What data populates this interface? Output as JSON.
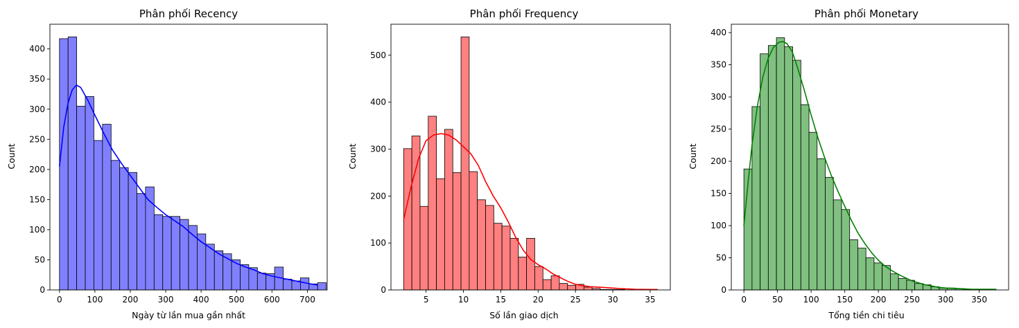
{
  "chart_data": [
    {
      "type": "bar",
      "subtype": "histogram-with-kde",
      "title": "Phân phối Recency",
      "xlabel": "Ngày từ lần mua gần nhất",
      "ylabel": "Count",
      "color": "#0000ff",
      "fill": "#8080ff",
      "xlim": [
        -27,
        756
      ],
      "ylim": [
        0,
        441
      ],
      "xticks": [
        0,
        100,
        200,
        300,
        400,
        500,
        600,
        700
      ],
      "yticks": [
        0,
        50,
        100,
        150,
        200,
        250,
        300,
        350,
        400
      ],
      "bin_start": 0,
      "bin_width": 24.3,
      "values": [
        417,
        420,
        305,
        321,
        248,
        275,
        215,
        203,
        195,
        160,
        171,
        125,
        122,
        122,
        117,
        107,
        93,
        76,
        65,
        60,
        50,
        42,
        37,
        28,
        27,
        38,
        18,
        15,
        20,
        10,
        12
      ],
      "kde": [
        [
          0,
          205
        ],
        [
          12,
          270
        ],
        [
          24,
          310
        ],
        [
          36,
          332
        ],
        [
          48,
          340
        ],
        [
          60,
          336
        ],
        [
          80,
          315
        ],
        [
          100,
          290
        ],
        [
          125,
          260
        ],
        [
          150,
          232
        ],
        [
          175,
          210
        ],
        [
          200,
          190
        ],
        [
          225,
          170
        ],
        [
          250,
          150
        ],
        [
          275,
          137
        ],
        [
          300,
          125
        ],
        [
          325,
          115
        ],
        [
          350,
          105
        ],
        [
          375,
          92
        ],
        [
          400,
          80
        ],
        [
          425,
          70
        ],
        [
          450,
          60
        ],
        [
          475,
          52
        ],
        [
          500,
          44
        ],
        [
          525,
          38
        ],
        [
          550,
          33
        ],
        [
          575,
          27
        ],
        [
          600,
          23
        ],
        [
          625,
          20
        ],
        [
          650,
          17
        ],
        [
          675,
          14
        ],
        [
          700,
          11
        ],
        [
          729,
          8
        ]
      ]
    },
    {
      "type": "bar",
      "subtype": "histogram-with-kde",
      "title": "Phân phối Frequency",
      "xlabel": "Số lần giao dịch",
      "ylabel": "Count",
      "color": "#ff0000",
      "fill": "#ff8080",
      "xlim": [
        0.3,
        37.7
      ],
      "ylim": [
        0,
        566
      ],
      "xticks": [
        5,
        10,
        15,
        20,
        25,
        30,
        35
      ],
      "yticks": [
        0,
        100,
        200,
        300,
        400,
        500
      ],
      "bin_start": 2,
      "bin_width": 1.097,
      "values": [
        301,
        328,
        178,
        370,
        237,
        342,
        250,
        539,
        252,
        192,
        180,
        142,
        136,
        110,
        70,
        110,
        50,
        22,
        30,
        14,
        10,
        12,
        6,
        3,
        1,
        1,
        1,
        0,
        0,
        0,
        0
      ],
      "kde": [
        [
          2,
          150
        ],
        [
          3,
          220
        ],
        [
          4,
          280
        ],
        [
          5,
          318
        ],
        [
          6,
          330
        ],
        [
          7,
          333
        ],
        [
          8,
          330
        ],
        [
          9,
          320
        ],
        [
          10,
          305
        ],
        [
          11,
          290
        ],
        [
          12,
          265
        ],
        [
          13,
          230
        ],
        [
          14,
          200
        ],
        [
          15,
          175
        ],
        [
          16,
          145
        ],
        [
          17,
          112
        ],
        [
          18,
          85
        ],
        [
          19,
          65
        ],
        [
          20,
          54
        ],
        [
          21,
          45
        ],
        [
          22,
          34
        ],
        [
          23,
          26
        ],
        [
          24,
          18
        ],
        [
          25,
          12
        ],
        [
          26,
          9
        ],
        [
          27,
          7
        ],
        [
          28,
          6
        ],
        [
          29,
          5
        ],
        [
          30,
          4
        ],
        [
          31,
          3
        ],
        [
          32,
          2
        ],
        [
          33,
          1.5
        ],
        [
          35,
          1
        ],
        [
          36,
          1
        ]
      ]
    },
    {
      "type": "bar",
      "subtype": "histogram-with-kde",
      "title": "Phân phối Monetary",
      "xlabel": "Tổng tiền chi tiêu",
      "ylabel": "Count",
      "color": "#008000",
      "fill": "#80c080",
      "xlim": [
        -18.7,
        393.7
      ],
      "ylim": [
        0,
        413
      ],
      "xticks": [
        0,
        50,
        100,
        150,
        200,
        250,
        300,
        350
      ],
      "yticks": [
        0,
        50,
        100,
        150,
        200,
        250,
        300,
        350,
        400
      ],
      "bin_start": 0,
      "bin_width": 12.1,
      "values": [
        188,
        285,
        367,
        380,
        392,
        378,
        357,
        288,
        245,
        204,
        175,
        140,
        125,
        78,
        65,
        50,
        42,
        38,
        25,
        18,
        15,
        10,
        8,
        5,
        3,
        3,
        2,
        1,
        1,
        1,
        1
      ],
      "kde": [
        [
          0,
          100
        ],
        [
          6,
          165
        ],
        [
          12,
          225
        ],
        [
          20,
          285
        ],
        [
          28,
          330
        ],
        [
          36,
          360
        ],
        [
          44,
          377
        ],
        [
          52,
          385
        ],
        [
          58,
          386
        ],
        [
          64,
          383
        ],
        [
          72,
          370
        ],
        [
          80,
          345
        ],
        [
          90,
          310
        ],
        [
          100,
          272
        ],
        [
          110,
          237
        ],
        [
          120,
          206
        ],
        [
          130,
          178
        ],
        [
          140,
          153
        ],
        [
          150,
          130
        ],
        [
          160,
          108
        ],
        [
          170,
          88
        ],
        [
          180,
          72
        ],
        [
          190,
          58
        ],
        [
          200,
          46
        ],
        [
          210,
          37
        ],
        [
          220,
          30
        ],
        [
          230,
          24
        ],
        [
          240,
          19
        ],
        [
          250,
          14
        ],
        [
          260,
          11
        ],
        [
          270,
          8
        ],
        [
          280,
          6
        ],
        [
          290,
          4
        ],
        [
          300,
          3
        ],
        [
          320,
          2
        ],
        [
          340,
          1
        ],
        [
          360,
          1
        ],
        [
          375,
          1
        ]
      ]
    }
  ]
}
